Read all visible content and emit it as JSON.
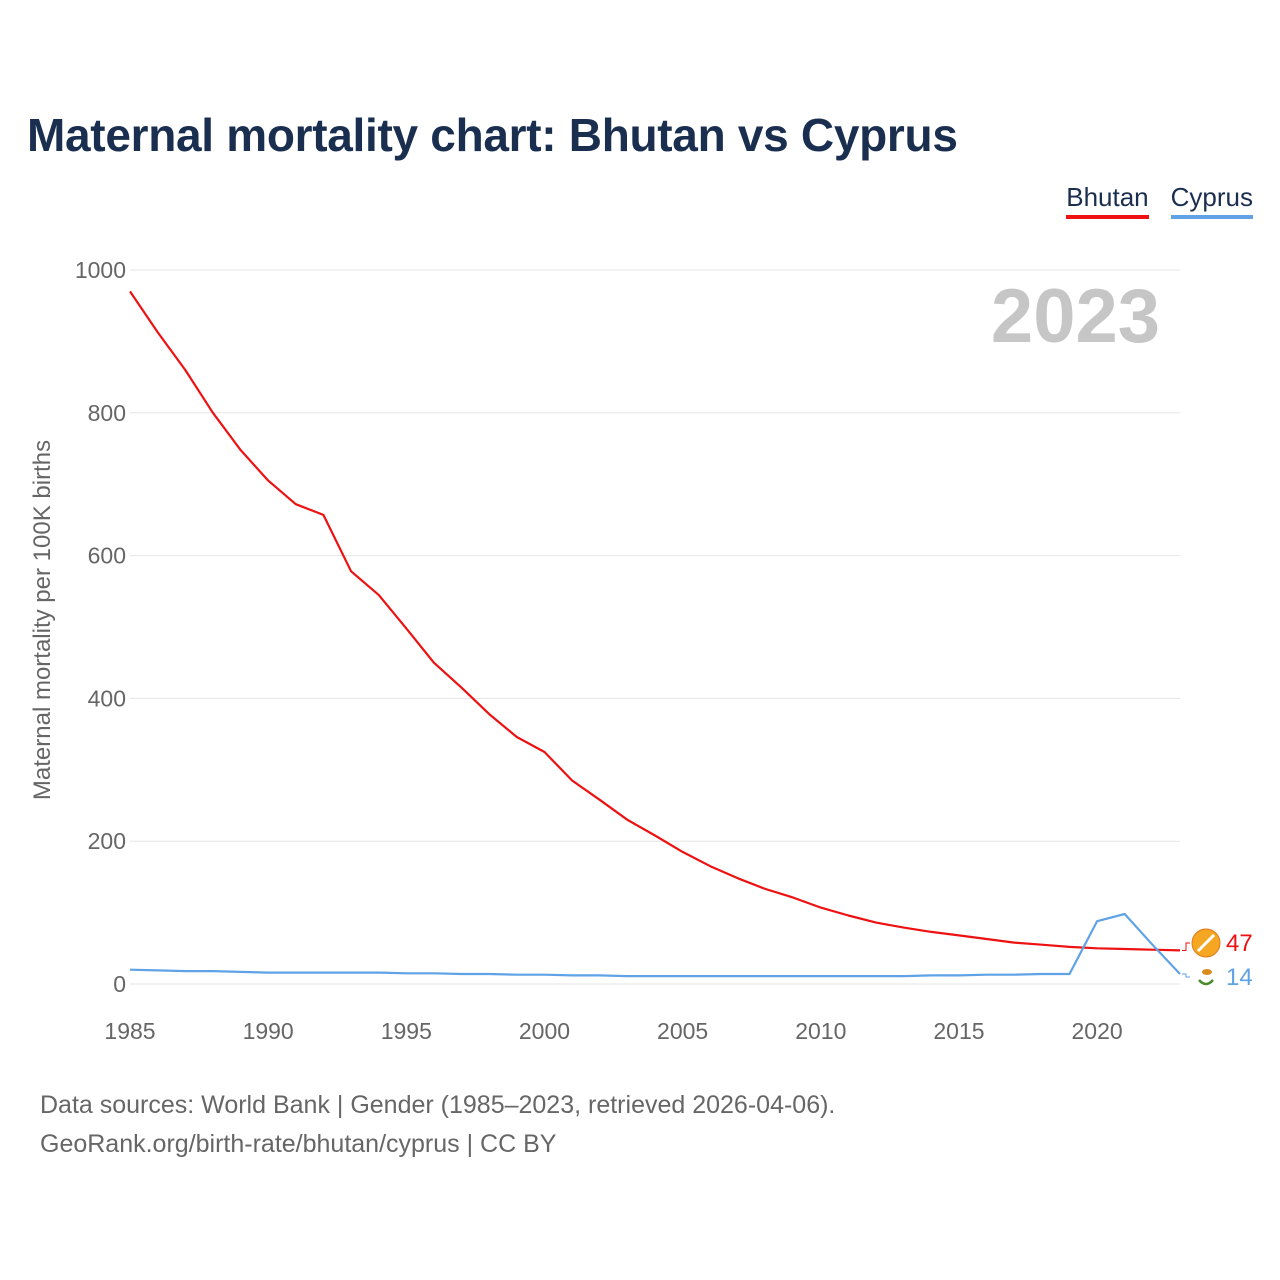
{
  "title": "Maternal mortality chart: Bhutan vs Cyprus",
  "legend": [
    {
      "label": "Bhutan",
      "color": "#ee1111"
    },
    {
      "label": "Cyprus",
      "color": "#5fa2e6"
    }
  ],
  "year_label": "2023",
  "source_lines": [
    "Data sources: World Bank | Gender (1985–2023, retrieved 2026-04-06).",
    "GeoRank.org/birth-rate/bhutan/cyprus | CC BY"
  ],
  "chart_data": {
    "type": "line",
    "title": "Maternal mortality chart: Bhutan vs Cyprus",
    "xlabel": "",
    "ylabel": "Maternal mortality per 100K births",
    "xlim": [
      1985,
      2023
    ],
    "ylim": [
      0,
      1000
    ],
    "xticks": [
      1985,
      1990,
      1995,
      2000,
      2005,
      2010,
      2015,
      2020
    ],
    "yticks": [
      0,
      200,
      400,
      600,
      800,
      1000
    ],
    "grid": true,
    "legend_position": "top-right",
    "x": [
      1985,
      1986,
      1987,
      1988,
      1989,
      1990,
      1991,
      1992,
      1993,
      1994,
      1995,
      1996,
      1997,
      1998,
      1999,
      2000,
      2001,
      2002,
      2003,
      2004,
      2005,
      2006,
      2007,
      2008,
      2009,
      2010,
      2011,
      2012,
      2013,
      2014,
      2015,
      2016,
      2017,
      2018,
      2019,
      2020,
      2021,
      2022,
      2023
    ],
    "series": [
      {
        "name": "Bhutan",
        "color": "#ee1111",
        "end_label": "47",
        "values": [
          970,
          913,
          860,
          800,
          748,
          705,
          672,
          657,
          578,
          545,
          498,
          450,
          415,
          378,
          346,
          325,
          285,
          258,
          230,
          208,
          185,
          165,
          148,
          133,
          121,
          107,
          96,
          86,
          79,
          73,
          68,
          63,
          58,
          55,
          52,
          50,
          49,
          48,
          47
        ]
      },
      {
        "name": "Cyprus",
        "color": "#5fa2e6",
        "end_label": "14",
        "values": [
          20,
          19,
          18,
          18,
          17,
          16,
          16,
          16,
          16,
          16,
          15,
          15,
          14,
          14,
          13,
          13,
          12,
          12,
          11,
          11,
          11,
          11,
          11,
          11,
          11,
          11,
          11,
          11,
          11,
          12,
          12,
          13,
          13,
          14,
          14,
          88,
          98,
          55,
          14
        ]
      }
    ]
  }
}
